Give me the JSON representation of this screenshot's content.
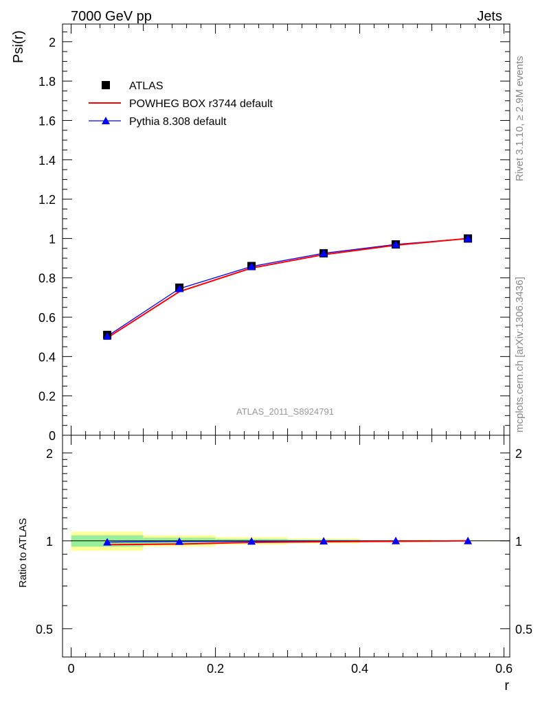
{
  "header": {
    "left": "7000 GeV pp",
    "right": "Jets"
  },
  "side_labels": {
    "rivet": "Rivet 3.1.10, ≥ 2.9M events",
    "mcplots": "mcplots.cern.ch [arXiv:1306.3436]"
  },
  "analysis_label": "ATLAS_2011_S8924791",
  "legend": {
    "placement": "top-left",
    "entries": [
      {
        "label": "ATLAS",
        "marker": "square",
        "color": "#000000"
      },
      {
        "label": "POWHEG BOX r3744 default",
        "marker": "line",
        "color": "#ff0000"
      },
      {
        "label": "Pythia 8.308 default",
        "marker": "triangle",
        "color": "#0000ff"
      }
    ]
  },
  "colors": {
    "data": "#000000",
    "powheg": "#ff0000",
    "pythia": "#0000ff",
    "band_inner": "#99ee99",
    "band_outer": "#ffff99"
  },
  "chart_data": [
    {
      "type": "line",
      "panel": "main",
      "title": "",
      "xlabel": "r",
      "ylabel": "Psi(r)",
      "xlim": [
        -0.012,
        0.608
      ],
      "ylim": [
        0,
        2.09
      ],
      "x_ticks": [
        0,
        0.2,
        0.4,
        0.6
      ],
      "x_tick_labels": [
        "0",
        "0.2",
        "0.4",
        "0.6"
      ],
      "y_ticks": [
        0,
        0.2,
        0.4,
        0.6,
        0.8,
        1,
        1.2,
        1.4,
        1.6,
        1.8,
        2
      ],
      "y_tick_labels": [
        "0",
        "0.2",
        "0.4",
        "0.6",
        "0.8",
        "1",
        "1.2",
        "1.4",
        "1.6",
        "1.8",
        "2"
      ],
      "grid": false,
      "x": [
        0.05,
        0.15,
        0.25,
        0.35,
        0.45,
        0.55
      ],
      "series": [
        {
          "name": "ATLAS",
          "values": [
            0.51,
            0.75,
            0.86,
            0.925,
            0.97,
            1.0
          ]
        },
        {
          "name": "POWHEG BOX r3744 default",
          "values": [
            0.495,
            0.73,
            0.85,
            0.918,
            0.966,
            1.0
          ]
        },
        {
          "name": "Pythia 8.308 default",
          "values": [
            0.503,
            0.745,
            0.858,
            0.925,
            0.97,
            1.0
          ]
        }
      ]
    },
    {
      "type": "line",
      "panel": "ratio",
      "title": "",
      "xlabel": "r",
      "ylabel": "Ratio to ATLAS",
      "xlim": [
        -0.012,
        0.608
      ],
      "ylim": [
        0.4,
        2.3
      ],
      "y_scale": "log",
      "y_ticks": [
        0.5,
        1,
        2
      ],
      "y_tick_labels": [
        "0.5",
        "1",
        "2"
      ],
      "grid": false,
      "x": [
        0.05,
        0.15,
        0.25,
        0.35,
        0.45,
        0.55
      ],
      "bin_edges": [
        0,
        0.1,
        0.2,
        0.3,
        0.4,
        0.5,
        0.6
      ],
      "band_inner": [
        [
          0.955,
          1.045
        ],
        [
          0.975,
          1.025
        ],
        [
          0.985,
          1.015
        ],
        [
          0.99,
          1.01
        ],
        [
          0.995,
          1.005
        ],
        [
          0.998,
          1.002
        ]
      ],
      "band_outer": [
        [
          0.925,
          1.075
        ],
        [
          0.955,
          1.045
        ],
        [
          0.97,
          1.03
        ],
        [
          0.98,
          1.02
        ],
        [
          0.99,
          1.01
        ],
        [
          0.996,
          1.004
        ]
      ],
      "series": [
        {
          "name": "POWHEG BOX r3744 default",
          "values": [
            0.97,
            0.975,
            0.988,
            0.993,
            0.996,
            1.0
          ]
        },
        {
          "name": "Pythia 8.308 default",
          "values": [
            0.99,
            0.995,
            0.997,
            0.998,
            1.0,
            1.0
          ]
        }
      ]
    }
  ]
}
